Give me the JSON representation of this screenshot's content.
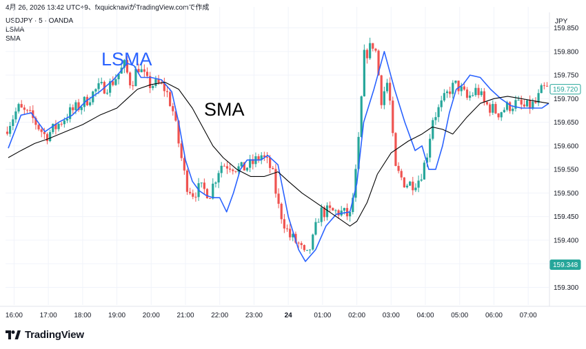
{
  "header": {
    "timestamp_line": "4月 26, 2026 13:42 UTC+9、fxquicknaviがTradingView.comで作成",
    "symbol_line": "USDJPY · 5 · OANDA",
    "indicator_1": "LSMA",
    "indicator_2": "SMA",
    "currency": "JPY"
  },
  "annotations": {
    "lsma": "LSMA",
    "sma": "SMA"
  },
  "branding": {
    "logo_text": "TradingView"
  },
  "colors": {
    "up": "#26a69a",
    "down": "#ef5350",
    "lsma": "#2962ff",
    "sma": "#000000",
    "grid": "#f0f3fa",
    "axis_text": "#131722"
  },
  "chart_data": {
    "type": "candlestick",
    "symbol": "USDJPY",
    "timeframe": "5",
    "broker": "OANDA",
    "ylim": [
      159.27,
      159.88
    ],
    "y_ticks": [
      "159.850",
      "159.800",
      "159.750",
      "159.700",
      "159.650",
      "159.600",
      "159.550",
      "159.500",
      "159.450",
      "159.400",
      "159.350",
      "159.300"
    ],
    "x_ticks": [
      {
        "label": "16:00",
        "hour": 16.0
      },
      {
        "label": "17:00",
        "hour": 17.0
      },
      {
        "label": "18:00",
        "hour": 18.0
      },
      {
        "label": "19:00",
        "hour": 19.0
      },
      {
        "label": "20:00",
        "hour": 20.0
      },
      {
        "label": "21:00",
        "hour": 21.0
      },
      {
        "label": "22:00",
        "hour": 22.0
      },
      {
        "label": "23:00",
        "hour": 23.0
      },
      {
        "label": "24",
        "hour": 24.0
      },
      {
        "label": "01:00",
        "hour": 25.0
      },
      {
        "label": "02:00",
        "hour": 26.0
      },
      {
        "label": "03:00",
        "hour": 27.0
      },
      {
        "label": "04:00",
        "hour": 28.0
      },
      {
        "label": "05:00",
        "hour": 29.0
      },
      {
        "label": "06:00",
        "hour": 30.0
      },
      {
        "label": "07:00",
        "hour": 31.0
      }
    ],
    "x_range_hours": [
      15.75,
      31.6
    ],
    "current_price_label": "159.720",
    "lower_price_label": "159.348",
    "lower_price_value": 159.348,
    "series": [
      {
        "name": "LSMA",
        "color": "#2962ff",
        "anchors": [
          [
            15.83,
            159.595
          ],
          [
            16.2,
            159.665
          ],
          [
            16.5,
            159.67
          ],
          [
            16.9,
            159.63
          ],
          [
            17.3,
            159.65
          ],
          [
            17.7,
            159.665
          ],
          [
            18.1,
            159.695
          ],
          [
            18.5,
            159.715
          ],
          [
            18.9,
            159.74
          ],
          [
            19.3,
            159.775
          ],
          [
            19.5,
            159.77
          ],
          [
            19.7,
            159.745
          ],
          [
            20.0,
            159.745
          ],
          [
            20.3,
            159.74
          ],
          [
            20.6,
            159.715
          ],
          [
            20.8,
            159.65
          ],
          [
            21.0,
            159.57
          ],
          [
            21.2,
            159.525
          ],
          [
            21.4,
            159.505
          ],
          [
            21.6,
            159.495
          ],
          [
            21.8,
            159.49
          ],
          [
            22.0,
            159.49
          ],
          [
            22.2,
            159.46
          ],
          [
            22.4,
            159.5
          ],
          [
            22.6,
            159.55
          ],
          [
            22.8,
            159.57
          ],
          [
            23.0,
            159.57
          ],
          [
            23.2,
            159.57
          ],
          [
            23.4,
            159.58
          ],
          [
            23.7,
            159.56
          ],
          [
            24.0,
            159.45
          ],
          [
            24.3,
            159.38
          ],
          [
            24.5,
            159.355
          ],
          [
            24.8,
            159.38
          ],
          [
            25.1,
            159.43
          ],
          [
            25.4,
            159.455
          ],
          [
            25.8,
            159.46
          ],
          [
            26.0,
            159.52
          ],
          [
            26.2,
            159.65
          ],
          [
            26.5,
            159.72
          ],
          [
            26.8,
            159.8
          ],
          [
            27.1,
            159.72
          ],
          [
            27.4,
            159.65
          ],
          [
            27.7,
            159.59
          ],
          [
            27.9,
            159.6
          ],
          [
            28.1,
            159.55
          ],
          [
            28.3,
            159.55
          ],
          [
            28.5,
            159.6
          ],
          [
            28.7,
            159.67
          ],
          [
            28.9,
            159.72
          ],
          [
            29.1,
            159.73
          ],
          [
            29.3,
            159.75
          ],
          [
            29.6,
            159.745
          ],
          [
            29.9,
            159.72
          ],
          [
            30.2,
            159.7
          ],
          [
            30.5,
            159.685
          ],
          [
            30.8,
            159.68
          ],
          [
            31.1,
            159.68
          ],
          [
            31.4,
            159.68
          ],
          [
            31.6,
            159.69
          ]
        ]
      },
      {
        "name": "SMA",
        "color": "#000000",
        "anchors": [
          [
            15.83,
            159.575
          ],
          [
            16.2,
            159.59
          ],
          [
            16.6,
            159.605
          ],
          [
            17.0,
            159.615
          ],
          [
            17.5,
            159.63
          ],
          [
            18.0,
            159.645
          ],
          [
            18.5,
            159.665
          ],
          [
            19.0,
            159.68
          ],
          [
            19.3,
            159.7
          ],
          [
            19.6,
            159.72
          ],
          [
            20.0,
            159.73
          ],
          [
            20.4,
            159.735
          ],
          [
            20.8,
            159.72
          ],
          [
            21.2,
            159.68
          ],
          [
            21.5,
            159.64
          ],
          [
            21.8,
            159.6
          ],
          [
            22.1,
            159.575
          ],
          [
            22.5,
            159.55
          ],
          [
            22.9,
            159.535
          ],
          [
            23.3,
            159.535
          ],
          [
            23.7,
            159.545
          ],
          [
            24.0,
            159.525
          ],
          [
            24.4,
            159.5
          ],
          [
            24.8,
            159.48
          ],
          [
            25.2,
            159.46
          ],
          [
            25.5,
            159.445
          ],
          [
            25.8,
            159.43
          ],
          [
            26.0,
            159.44
          ],
          [
            26.3,
            159.48
          ],
          [
            26.6,
            159.54
          ],
          [
            27.0,
            159.585
          ],
          [
            27.5,
            159.61
          ],
          [
            27.9,
            159.625
          ],
          [
            28.2,
            159.64
          ],
          [
            28.5,
            159.635
          ],
          [
            28.8,
            159.625
          ],
          [
            29.2,
            159.66
          ],
          [
            29.6,
            159.69
          ],
          [
            30.0,
            159.7
          ],
          [
            30.4,
            159.705
          ],
          [
            30.8,
            159.7
          ],
          [
            31.2,
            159.695
          ],
          [
            31.6,
            159.69
          ]
        ]
      }
    ],
    "candle_path": [
      [
        15.8,
        159.63
      ],
      [
        16.2,
        159.68
      ],
      [
        16.6,
        159.66
      ],
      [
        17.0,
        159.62
      ],
      [
        17.3,
        159.64
      ],
      [
        17.7,
        159.67
      ],
      [
        18.1,
        159.69
      ],
      [
        18.5,
        159.72
      ],
      [
        18.9,
        159.73
      ],
      [
        19.3,
        159.77
      ],
      [
        19.5,
        159.73
      ],
      [
        19.7,
        159.77
      ],
      [
        20.0,
        159.73
      ],
      [
        20.3,
        159.73
      ],
      [
        20.5,
        159.72
      ],
      [
        20.7,
        159.68
      ],
      [
        20.9,
        159.6
      ],
      [
        21.1,
        159.52
      ],
      [
        21.3,
        159.5
      ],
      [
        21.5,
        159.51
      ],
      [
        21.8,
        159.5
      ],
      [
        22.1,
        159.56
      ],
      [
        22.4,
        159.56
      ],
      [
        22.7,
        159.55
      ],
      [
        23.0,
        159.56
      ],
      [
        23.3,
        159.58
      ],
      [
        23.6,
        159.55
      ],
      [
        23.8,
        159.47
      ],
      [
        24.1,
        159.41
      ],
      [
        24.4,
        159.39
      ],
      [
        24.6,
        159.36
      ],
      [
        24.8,
        159.4
      ],
      [
        25.0,
        159.46
      ],
      [
        25.3,
        159.46
      ],
      [
        25.6,
        159.46
      ],
      [
        25.9,
        159.45
      ],
      [
        26.1,
        159.57
      ],
      [
        26.3,
        159.79
      ],
      [
        26.6,
        159.82
      ],
      [
        26.8,
        159.7
      ],
      [
        27.0,
        159.74
      ],
      [
        27.2,
        159.55
      ],
      [
        27.5,
        159.52
      ],
      [
        27.7,
        159.52
      ],
      [
        27.9,
        159.53
      ],
      [
        28.1,
        159.57
      ],
      [
        28.3,
        159.66
      ],
      [
        28.5,
        159.68
      ],
      [
        28.8,
        159.72
      ],
      [
        29.0,
        159.73
      ],
      [
        29.3,
        159.7
      ],
      [
        29.6,
        159.72
      ],
      [
        29.8,
        159.69
      ],
      [
        30.0,
        159.68
      ],
      [
        30.2,
        159.67
      ],
      [
        30.4,
        159.68
      ],
      [
        30.7,
        159.69
      ],
      [
        31.0,
        159.68
      ],
      [
        31.3,
        159.69
      ],
      [
        31.5,
        159.72
      ]
    ]
  }
}
